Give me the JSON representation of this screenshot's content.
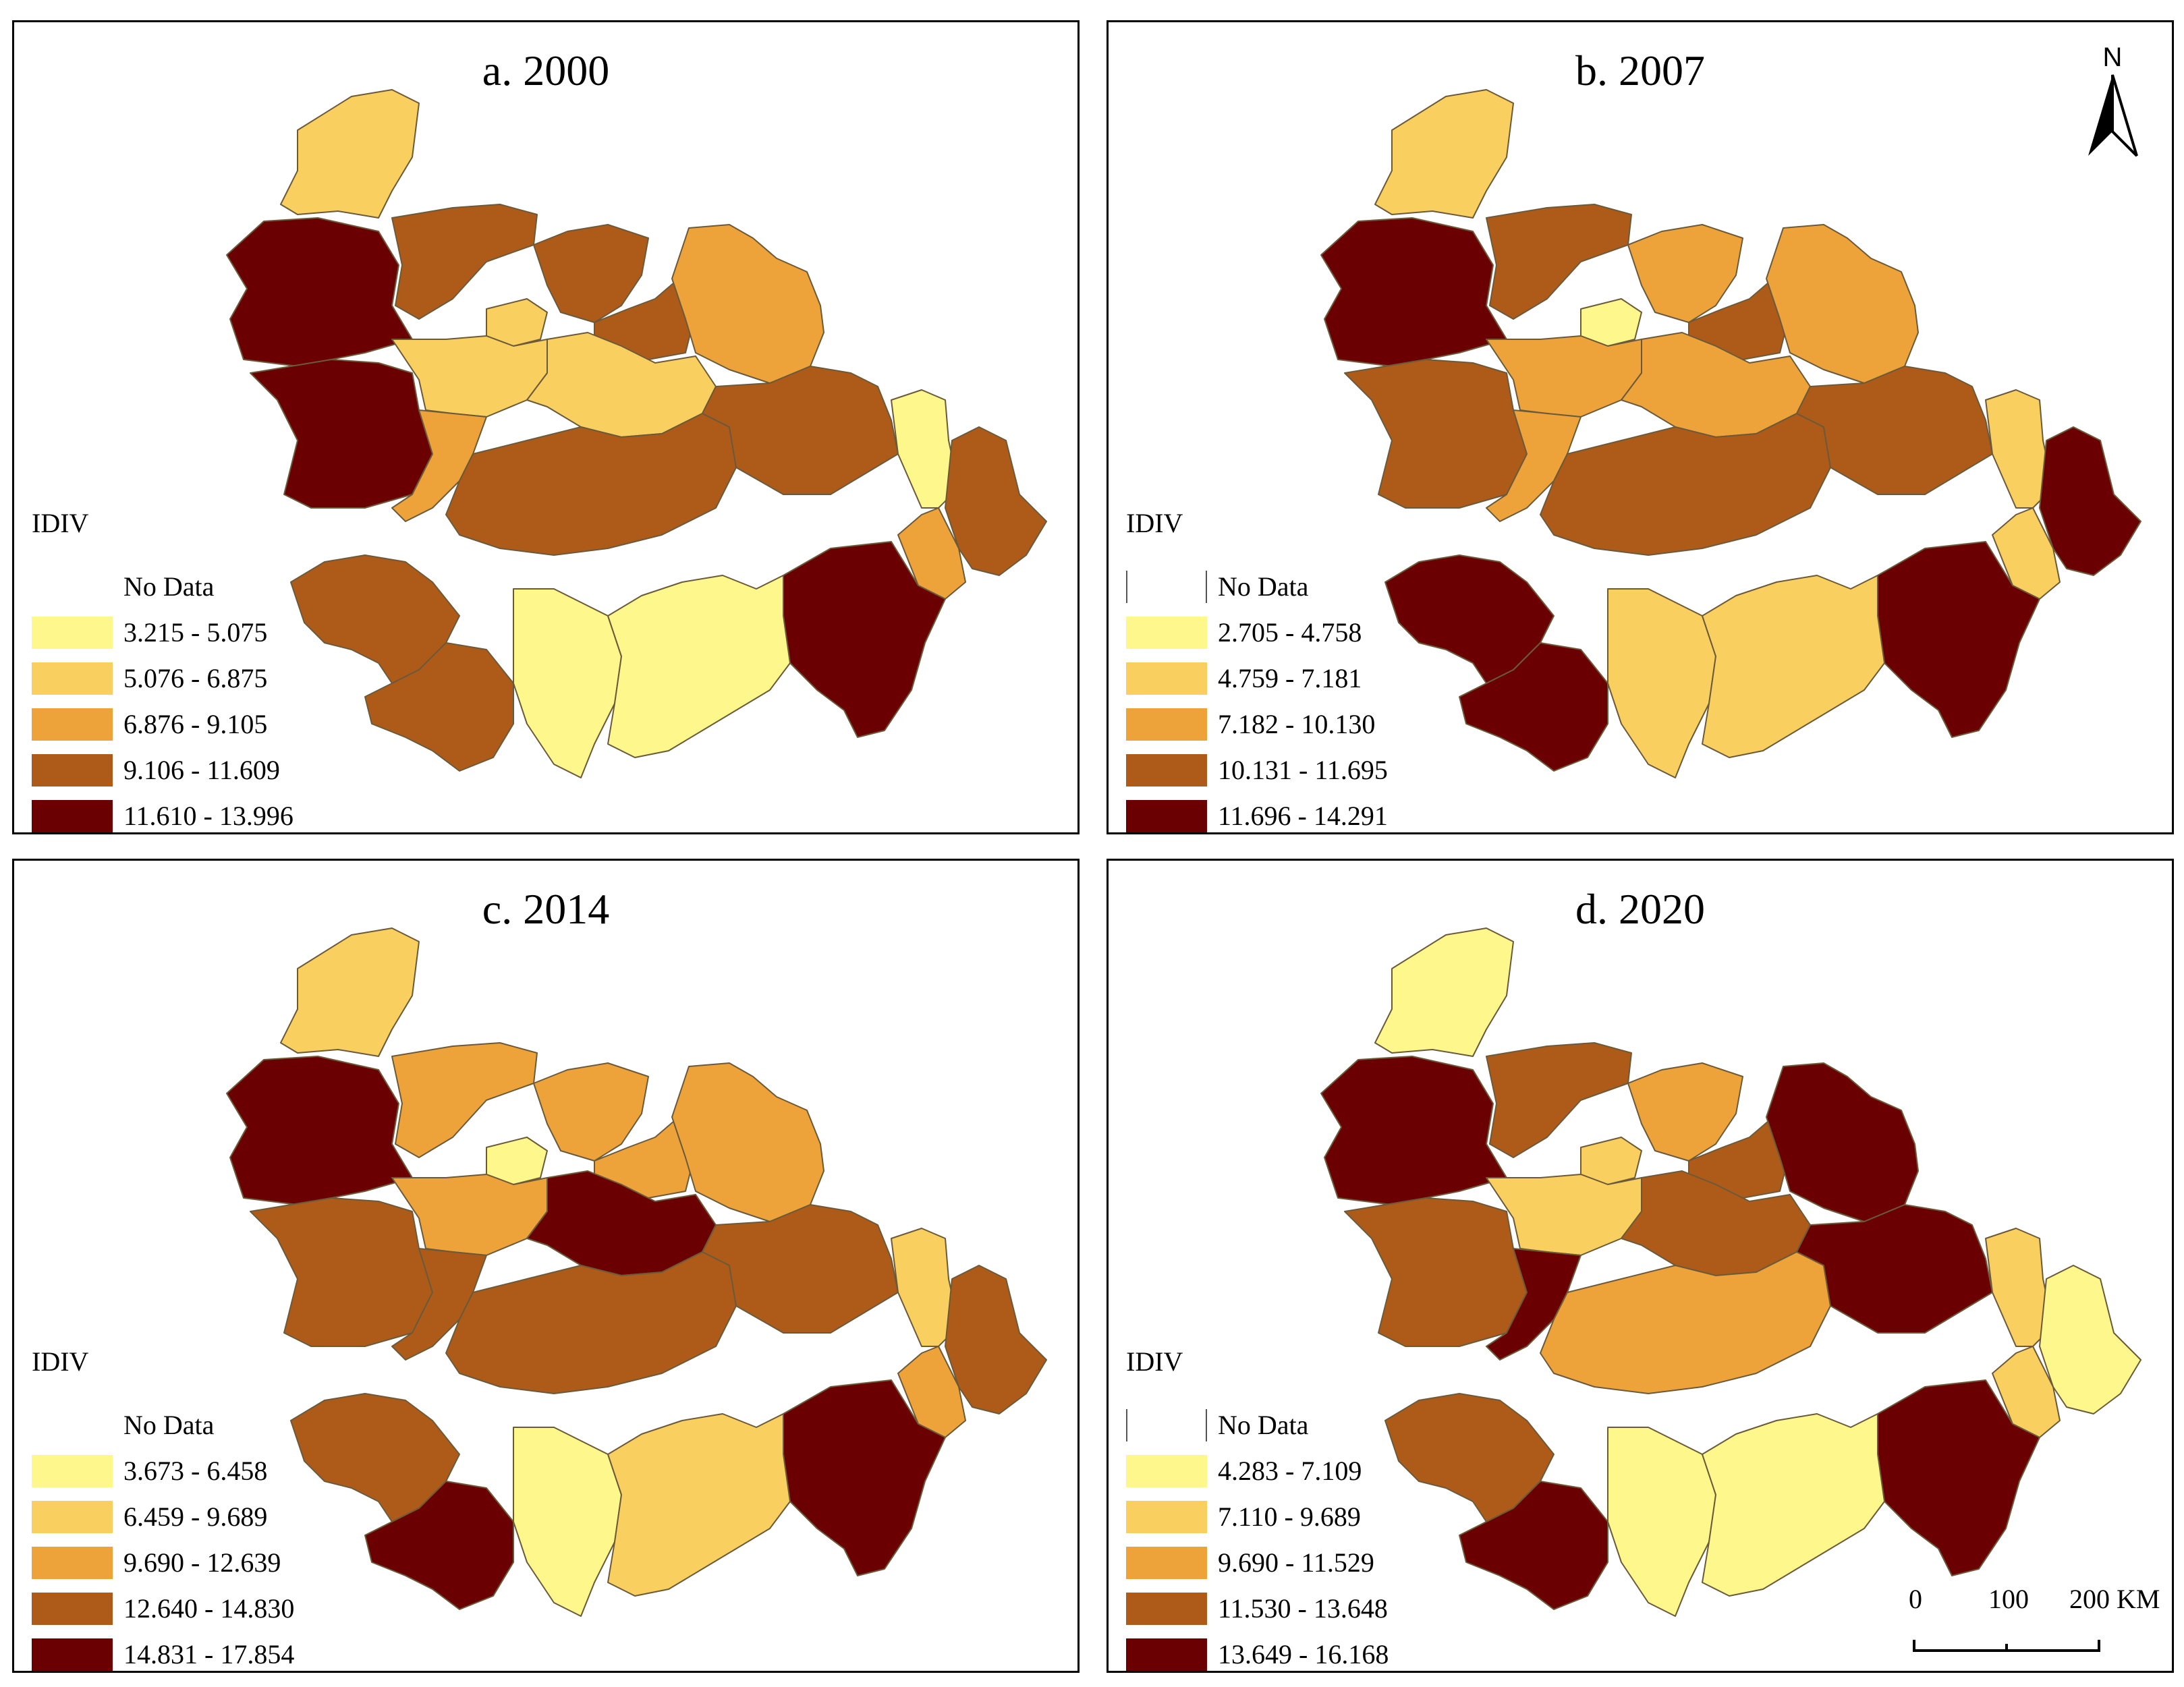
{
  "legend_title": "IDIV",
  "no_data_label": "No Data",
  "colors": {
    "class1": "#fdf78c",
    "class2": "#f9cf60",
    "class3": "#eea33a",
    "class4": "#ae5b1a",
    "class5": "#6b0003",
    "nodata": "#ffffff",
    "boundary": "#6b5a3a"
  },
  "north_arrow": {
    "label": "N"
  },
  "scale_bar": {
    "labels": [
      "0",
      "100",
      "200 KM"
    ]
  },
  "panels": [
    {
      "title": "a. 2000",
      "legend": [
        "3.215 - 5.075",
        "5.076 - 6.875",
        "6.876 - 9.105",
        "9.106 - 11.609",
        "11.610 - 13.996"
      ],
      "regions": [
        2,
        4,
        5,
        4,
        4,
        5,
        3,
        2,
        2,
        2,
        3,
        4,
        4,
        1,
        4,
        3,
        5,
        1,
        1,
        4,
        4
      ]
    },
    {
      "title": "b. 2007",
      "legend": [
        "2.705 - 4.758",
        "4.759 - 7.181",
        "7.182 - 10.130",
        "10.131 - 11.695",
        "11.696 - 14.291"
      ],
      "regions": [
        2,
        4,
        5,
        3,
        4,
        4,
        3,
        1,
        3,
        3,
        3,
        4,
        4,
        2,
        5,
        2,
        5,
        2,
        2,
        5,
        5
      ]
    },
    {
      "title": "c. 2014",
      "legend": [
        "3.673 - 6.458",
        "6.459 - 9.689",
        "9.690 - 12.639",
        "12.640 - 14.830",
        "14.831 - 17.854"
      ],
      "regions": [
        2,
        3,
        5,
        3,
        3,
        4,
        3,
        1,
        3,
        5,
        4,
        4,
        4,
        2,
        4,
        3,
        5,
        1,
        2,
        4,
        5
      ]
    },
    {
      "title": "d. 2020",
      "legend": [
        "4.283 - 7.109",
        "7.110 - 9.689",
        "9.690 - 11.529",
        "11.530 - 13.648",
        "13.649 - 16.168"
      ],
      "regions": [
        1,
        4,
        5,
        3,
        4,
        4,
        5,
        2,
        2,
        4,
        5,
        3,
        5,
        2,
        1,
        2,
        5,
        1,
        1,
        4,
        5
      ]
    }
  ]
}
